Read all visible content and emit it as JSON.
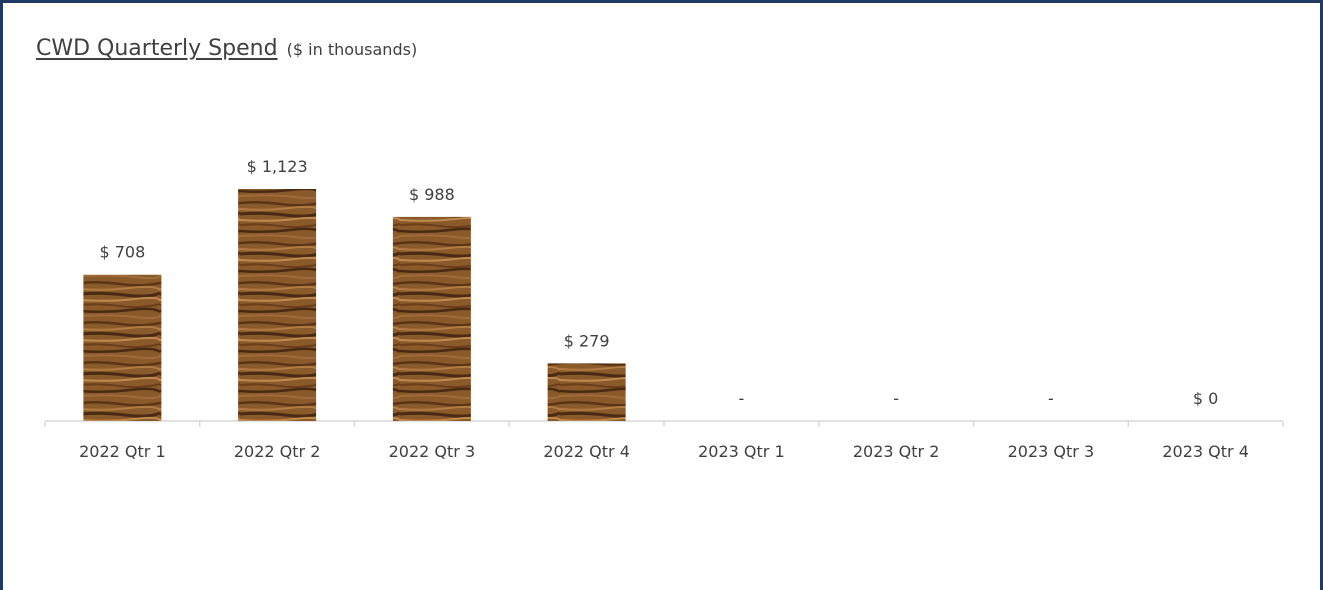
{
  "chart_data": {
    "type": "bar",
    "title": "CWD Quarterly Spend",
    "subtitle": "($ in thousands)",
    "xlabel": "",
    "ylabel": "",
    "categories": [
      "2022 Qtr 1",
      "2022 Qtr 2",
      "2022 Qtr 3",
      "2022 Qtr 4",
      "2023 Qtr 1",
      "2023 Qtr 2",
      "2023 Qtr 3",
      "2023 Qtr 4"
    ],
    "values": [
      708,
      1123,
      988,
      279,
      null,
      null,
      null,
      0
    ],
    "data_labels": [
      "$ 708",
      "$ 1,123",
      "$ 988",
      "$ 279",
      "-",
      "-",
      "-",
      "$ 0"
    ],
    "ylim": [
      0,
      1123
    ],
    "grid": false,
    "legend": "none",
    "bar_fill": "wood-texture",
    "colors": {
      "frame_border": "#1f3864",
      "text": "#404040",
      "axis": "#d9d9d9",
      "wood_base": "#8a5a2b",
      "wood_dark": "#4a2a12",
      "wood_light": "#c08a4e"
    }
  }
}
